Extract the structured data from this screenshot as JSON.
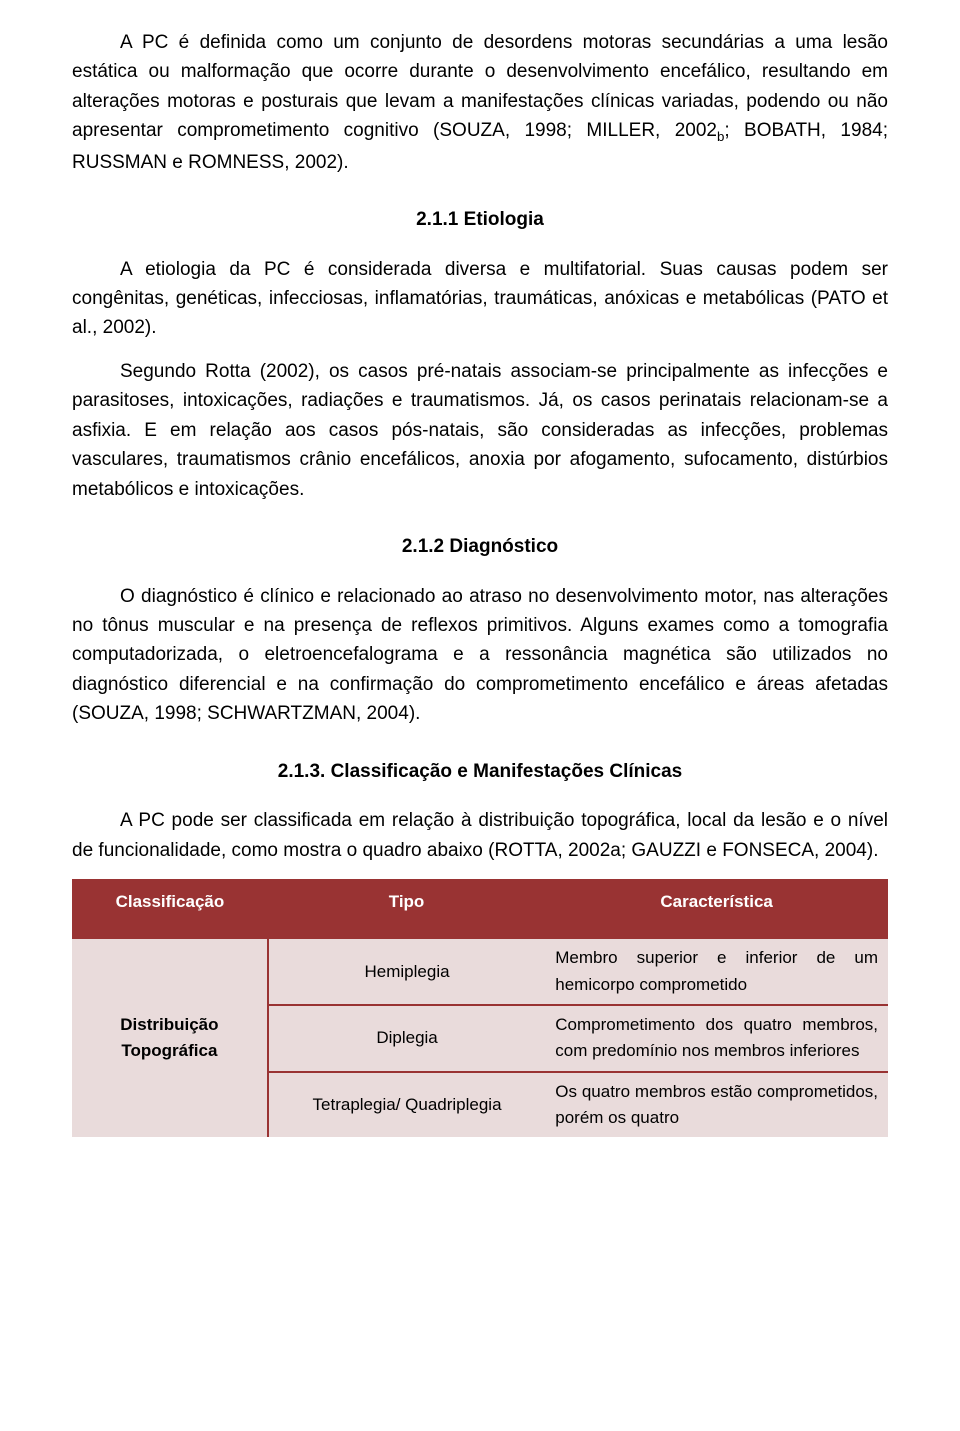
{
  "paragraphs": {
    "p1": "A PC é definida como um conjunto de desordens motoras secundárias a uma lesão estática ou malformação que ocorre durante o desenvolvimento encefálico, resultando em alterações motoras e posturais que levam a manifestações clínicas variadas, podendo ou não apresentar comprometimento cognitivo (SOUZA, 1998; MILLER, 2002",
    "p1_sub": "b",
    "p1_tail": "; BOBATH, 1984; RUSSMAN e ROMNESS, 2002).",
    "h1": "2.1.1 Etiologia",
    "p2": "A etiologia da PC é considerada diversa e multifatorial. Suas causas podem ser congênitas, genéticas, infecciosas, inflamatórias, traumáticas, anóxicas e metabólicas (PATO et al., 2002).",
    "p3": "Segundo Rotta (2002), os casos pré-natais associam-se principalmente as infecções e parasitoses, intoxicações, radiações e traumatismos. Já, os casos perinatais relacionam-se a asfixia. E em relação aos casos pós-natais, são consideradas as infecções, problemas vasculares, traumatismos crânio encefálicos, anoxia por afogamento, sufocamento, distúrbios metabólicos e intoxicações.",
    "h2": "2.1.2 Diagnóstico",
    "p4": "O diagnóstico é clínico e relacionado ao atraso no desenvolvimento motor, nas alterações no tônus muscular e na presença de reflexos primitivos. Alguns exames como a tomografia computadorizada, o eletroencefalograma e a ressonância magnética são utilizados no diagnóstico diferencial e na confirmação do comprometimento encefálico e áreas afetadas (SOUZA, 1998; SCHWARTZMAN, 2004).",
    "h3": "2.1.3. Classificação e Manifestações Clínicas",
    "p5": "A PC pode ser classificada em relação à distribuição topográfica, local da lesão e o nível de funcionalidade, como mostra o quadro abaixo (ROTTA, 2002a; GAUZZI e FONSECA, 2004)."
  },
  "table": {
    "header_bg": "#993333",
    "header_fg": "#ffffff",
    "body_bg": "#e9dbdb",
    "border_color": "#993333",
    "columns": [
      "Classificação",
      "Tipo",
      "Característica"
    ],
    "category": "Distribuição Topográfica",
    "rows": [
      {
        "type": "Hemiplegia",
        "char": "Membro superior e inferior de um hemicorpo comprometido"
      },
      {
        "type": "Diplegia",
        "char": "Comprometimento dos quatro membros, com predomínio nos membros inferiores"
      },
      {
        "type": "Tetraplegia/ Quadriplegia",
        "char": "Os quatro membros estão comprometidos, porém os quatro"
      }
    ]
  }
}
